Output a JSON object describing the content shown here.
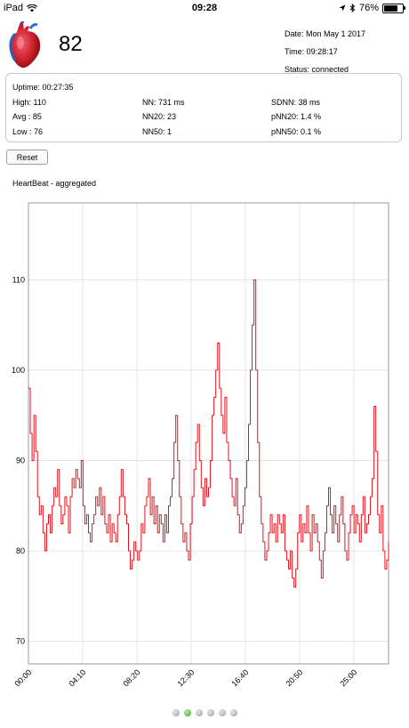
{
  "status_bar": {
    "device": "iPad",
    "time": "09:28",
    "battery": "76%",
    "battery_level": 0.76,
    "icons": [
      "wifi-icon",
      "location-arrow-icon",
      "bluetooth-icon",
      "battery-icon"
    ]
  },
  "header": {
    "icon": "heart-icon",
    "heart_rate": "82",
    "date": "Date: Mon May 1 2017",
    "time": "Time: 09:28:17",
    "status": "Status: connected"
  },
  "stats": {
    "uptime": "Uptime: 00:27:35",
    "high": "High: 110",
    "avg": "Avg :  85",
    "low": "Low :  76",
    "nn": "NN: 731 ms",
    "nn20": "NN20: 23",
    "nn50": "NN50: 1",
    "sdnn": "SDNN: 38 ms",
    "pnn20": "pNN20: 1.4 %",
    "pnn50": "pNN50: 0.1 %"
  },
  "reset_label": "Reset",
  "chart_title": "HeartBeat - aggregated",
  "colors": {
    "line": "#e0141e",
    "grid": "#e4e4e4",
    "frame": "#999999"
  },
  "pager": {
    "count": 6,
    "active": 1
  },
  "chart_data": {
    "type": "line",
    "title": "HeartBeat - aggregated",
    "xlabel": "",
    "ylabel": "",
    "x_ticks": [
      "00:00",
      "04:10",
      "08:20",
      "12:30",
      "16:40",
      "20:50",
      "25:00"
    ],
    "y_ticks": [
      70,
      80,
      90,
      100,
      110
    ],
    "ylim": [
      67.5,
      118.5
    ],
    "grid": true,
    "series": [
      {
        "values": [
          98,
          93,
          90,
          95,
          91,
          86,
          84,
          85,
          82,
          80,
          83,
          84,
          82,
          85,
          87,
          86,
          89,
          85,
          83,
          84,
          86,
          85,
          82,
          86,
          88,
          87,
          89,
          88,
          87,
          90,
          85,
          83,
          84,
          82,
          81,
          83,
          84,
          86,
          85,
          87,
          84,
          86,
          83,
          82,
          84,
          81,
          83,
          82,
          81,
          84,
          86,
          89,
          86,
          84,
          83,
          80,
          78,
          79,
          81,
          80,
          79,
          80,
          83,
          82,
          85,
          86,
          88,
          84,
          86,
          83,
          85,
          82,
          84,
          83,
          81,
          84,
          82,
          85,
          86,
          88,
          92,
          95,
          90,
          86,
          83,
          81,
          82,
          80,
          79,
          83,
          86,
          89,
          92,
          94,
          90,
          87,
          85,
          88,
          86,
          87,
          90,
          95,
          97,
          100,
          103,
          98,
          95,
          93,
          97,
          92,
          90,
          88,
          86,
          85,
          88,
          84,
          82,
          83,
          85,
          87,
          90,
          94,
          100,
          105,
          110,
          100,
          92,
          86,
          83,
          81,
          79,
          80,
          82,
          84,
          82,
          83,
          81,
          84,
          83,
          82,
          84,
          80,
          79,
          78,
          80,
          77,
          76,
          78,
          82,
          84,
          81,
          83,
          82,
          85,
          82,
          80,
          84,
          82,
          83,
          81,
          79,
          77,
          80,
          82,
          85,
          87,
          84,
          82,
          85,
          83,
          81,
          84,
          86,
          83,
          80,
          79,
          82,
          84,
          85,
          82,
          84,
          83,
          81,
          84,
          86,
          82,
          83,
          84,
          86,
          88,
          96,
          91,
          84,
          82,
          85,
          80,
          78,
          79,
          81
        ]
      }
    ]
  }
}
